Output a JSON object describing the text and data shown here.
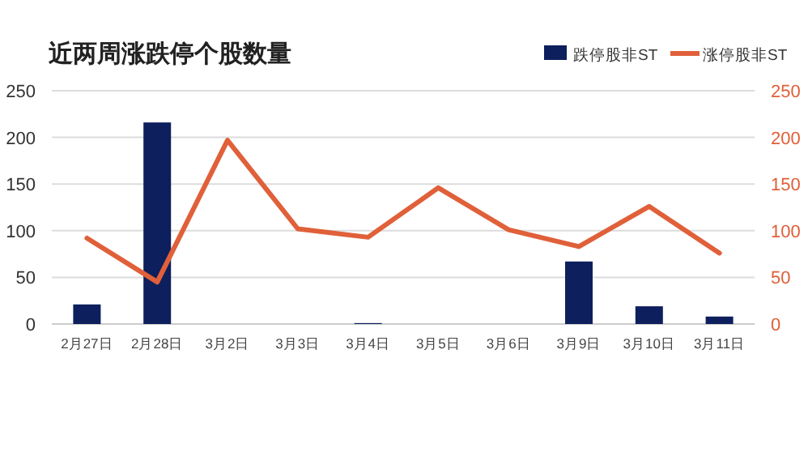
{
  "chart_data": {
    "type": "bar",
    "title": "近两周涨跌停个股数量",
    "categories": [
      "2月27日",
      "2月28日",
      "3月2日",
      "3月3日",
      "3月4日",
      "3月5日",
      "3月6日",
      "3月9日",
      "3月10日",
      "3月11日"
    ],
    "series": [
      {
        "name": "跌停股非ST",
        "color": "#0d1f5c",
        "values": [
          21,
          216,
          0,
          0,
          1,
          0,
          0,
          67,
          19,
          8
        ]
      },
      {
        "name": "涨停股非ST",
        "type": "line",
        "axis": "y2",
        "color": "#e0603a",
        "values": [
          92,
          45,
          197,
          102,
          93,
          146,
          101,
          83,
          126,
          76
        ]
      }
    ],
    "ylim": [
      0,
      250
    ],
    "yticks": [
      0,
      50,
      100,
      150,
      200,
      250
    ],
    "y2lim": [
      0,
      250
    ],
    "y2ticks": [
      0,
      50,
      100,
      150,
      200,
      250
    ],
    "grid": "y",
    "legend": "top right"
  }
}
